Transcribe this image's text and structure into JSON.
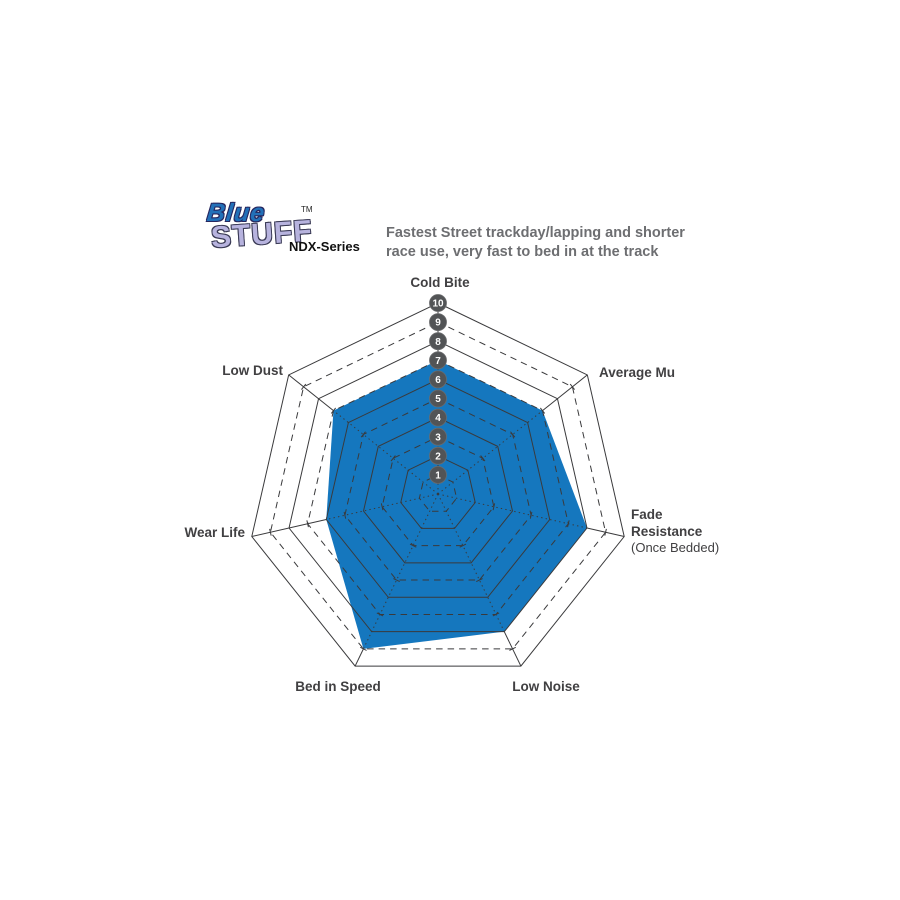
{
  "brand": {
    "logo_line1": "Blue",
    "logo_line2": "STUFF",
    "trademark": "TM",
    "series": "NDX-Series"
  },
  "description": {
    "line1": "Fastest Street trackday/lapping and shorter",
    "line2": "race use, very fast to bed in at the track"
  },
  "chart_data": {
    "type": "radar",
    "title": "Bluestuff NDX-Series brake pad performance",
    "scale": {
      "min": 0,
      "max": 10,
      "ring_values": [
        1,
        2,
        3,
        4,
        5,
        6,
        7,
        8,
        9,
        10
      ]
    },
    "grid": "heptagon rings, even rings solid, odd rings dashed, radial spokes",
    "legend_position": "none",
    "axes": [
      {
        "label": "Cold Bite",
        "value": 7
      },
      {
        "label": "Average Mu",
        "value": 7
      },
      {
        "label": "Fade Resistance",
        "sublabel": "(Once Bedded)",
        "value": 8
      },
      {
        "label": "Low Noise",
        "value": 8
      },
      {
        "label": "Bed in Speed",
        "value": 9
      },
      {
        "label": "Wear Life",
        "value": 6
      },
      {
        "label": "Low Dust",
        "value": 7
      }
    ],
    "colors": {
      "fill": "#1577be",
      "grid": "#3a3a3c",
      "badge": "#525456",
      "badge_text": "#ffffff",
      "axis_label": "#414042",
      "description_text": "#6d6e71",
      "logo_blue": "#2270b8",
      "logo_lavender": "#b7b3de"
    }
  }
}
